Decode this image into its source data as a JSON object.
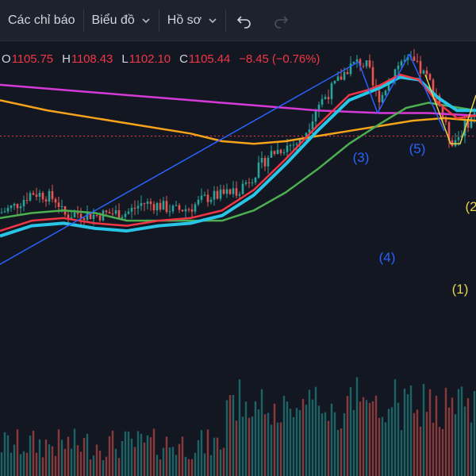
{
  "toolbar": {
    "indicators_label": "Các chỉ báo",
    "chart_label": "Biểu đồ",
    "profile_label": "Hồ sơ",
    "undo_icon": "undo-icon",
    "redo_icon": "redo-icon"
  },
  "ohlc": {
    "open_key": "O",
    "open": "1105.75",
    "high_key": "H",
    "high": "1108.43",
    "low_key": "L",
    "low": "1102.10",
    "close_key": "C",
    "close": "1105.44",
    "change": "−8.45 (−0.76%)"
  },
  "colors": {
    "background": "#131722",
    "up": "#26a69a",
    "down": "#ef5350",
    "ma_fast": "#f23645",
    "ma_cyan": "#29c5e6",
    "ma_green": "#4caf50",
    "ma_orange": "#f7a21b",
    "ma_magenta": "#d63ad6",
    "wave_blue": "#2962ff",
    "wave_yellow": "#e8d44a"
  },
  "chart_data": {
    "type": "line",
    "x_unit": "bar index",
    "xlim": [
      0,
      150
    ],
    "ylim": [
      1040,
      1170
    ],
    "hline": 1133,
    "series": [
      {
        "role": "price",
        "points": [
          [
            0,
            1103
          ],
          [
            5,
            1106
          ],
          [
            10,
            1111
          ],
          [
            14,
            1110
          ],
          [
            18,
            1108
          ],
          [
            20,
            1102
          ],
          [
            25,
            1103
          ],
          [
            30,
            1102
          ],
          [
            35,
            1103
          ],
          [
            40,
            1103
          ],
          [
            45,
            1107
          ],
          [
            50,
            1106
          ],
          [
            55,
            1104
          ],
          [
            60,
            1105
          ],
          [
            65,
            1109
          ],
          [
            70,
            1110
          ],
          [
            75,
            1112
          ],
          [
            80,
            1118
          ],
          [
            85,
            1126
          ],
          [
            90,
            1129
          ],
          [
            95,
            1131
          ],
          [
            100,
            1145
          ],
          [
            105,
            1152
          ],
          [
            110,
            1160
          ],
          [
            113,
            1162
          ],
          [
            116,
            1160
          ],
          [
            118,
            1150
          ],
          [
            120,
            1148
          ],
          [
            123,
            1156
          ],
          [
            126,
            1162
          ],
          [
            130,
            1162
          ],
          [
            135,
            1155
          ],
          [
            138,
            1148
          ],
          [
            140,
            1138
          ],
          [
            142,
            1131
          ],
          [
            144,
            1132
          ],
          [
            147,
            1138
          ],
          [
            150,
            1142
          ]
        ]
      },
      {
        "role": "ma-fast",
        "points": [
          [
            0,
            1096
          ],
          [
            10,
            1100
          ],
          [
            20,
            1101
          ],
          [
            30,
            1099
          ],
          [
            40,
            1098
          ],
          [
            50,
            1100
          ],
          [
            60,
            1101
          ],
          [
            70,
            1104
          ],
          [
            80,
            1112
          ],
          [
            90,
            1124
          ],
          [
            100,
            1137
          ],
          [
            110,
            1149
          ],
          [
            116,
            1151
          ],
          [
            120,
            1153
          ],
          [
            126,
            1157
          ],
          [
            132,
            1155
          ],
          [
            138,
            1146
          ],
          [
            144,
            1140
          ],
          [
            150,
            1141
          ]
        ]
      },
      {
        "role": "ma-cyan",
        "points": [
          [
            0,
            1094
          ],
          [
            10,
            1098
          ],
          [
            20,
            1099
          ],
          [
            30,
            1097
          ],
          [
            40,
            1096
          ],
          [
            50,
            1098
          ],
          [
            60,
            1099
          ],
          [
            70,
            1102
          ],
          [
            80,
            1110
          ],
          [
            90,
            1122
          ],
          [
            100,
            1135
          ],
          [
            110,
            1147
          ],
          [
            116,
            1150
          ],
          [
            120,
            1152
          ],
          [
            126,
            1156
          ],
          [
            132,
            1155
          ],
          [
            138,
            1148
          ],
          [
            144,
            1143
          ],
          [
            150,
            1143
          ]
        ]
      },
      {
        "role": "ma-green",
        "points": [
          [
            0,
            1101
          ],
          [
            10,
            1103
          ],
          [
            20,
            1104
          ],
          [
            30,
            1103
          ],
          [
            40,
            1100
          ],
          [
            50,
            1100
          ],
          [
            60,
            1100
          ],
          [
            70,
            1100
          ],
          [
            80,
            1104
          ],
          [
            90,
            1111
          ],
          [
            100,
            1120
          ],
          [
            110,
            1130
          ],
          [
            120,
            1138
          ],
          [
            128,
            1144
          ],
          [
            135,
            1146
          ],
          [
            140,
            1145
          ],
          [
            150,
            1143
          ]
        ]
      },
      {
        "role": "ma-orange",
        "points": [
          [
            0,
            1147
          ],
          [
            15,
            1143
          ],
          [
            30,
            1140
          ],
          [
            45,
            1137
          ],
          [
            60,
            1134
          ],
          [
            70,
            1131
          ],
          [
            80,
            1130
          ],
          [
            90,
            1131
          ],
          [
            100,
            1133
          ],
          [
            110,
            1135
          ],
          [
            120,
            1137
          ],
          [
            130,
            1139
          ],
          [
            140,
            1140
          ],
          [
            150,
            1139
          ]
        ]
      },
      {
        "role": "ma-magenta",
        "points": [
          [
            0,
            1153
          ],
          [
            20,
            1151
          ],
          [
            40,
            1149
          ],
          [
            60,
            1147
          ],
          [
            80,
            1145
          ],
          [
            100,
            1143
          ],
          [
            120,
            1142
          ],
          [
            135,
            1142
          ],
          [
            150,
            1141
          ]
        ]
      }
    ],
    "channel_line": [
      [
        0,
        1083
      ],
      [
        113,
        1162
      ]
    ],
    "waves": [
      {
        "label": "(3)",
        "color": "#2962ff",
        "points": [
          [
            113,
            1162
          ],
          [
            119,
            1142
          ]
        ]
      },
      {
        "label": "(4)",
        "color": "#2962ff",
        "points": [
          [
            119,
            1142
          ],
          [
            129,
            1165
          ]
        ]
      },
      {
        "label": "(5)",
        "color": "#2962ff",
        "points": [
          [
            129,
            1165
          ],
          [
            140,
            1135
          ]
        ]
      },
      {
        "label": "(1)",
        "color": "#e8d44a",
        "points": [
          [
            134,
            1157
          ],
          [
            142,
            1130
          ],
          [
            145,
            1130
          ],
          [
            150,
            1149
          ]
        ]
      },
      {
        "label": "(2",
        "color": "#e8d44a",
        "points": []
      }
    ]
  }
}
